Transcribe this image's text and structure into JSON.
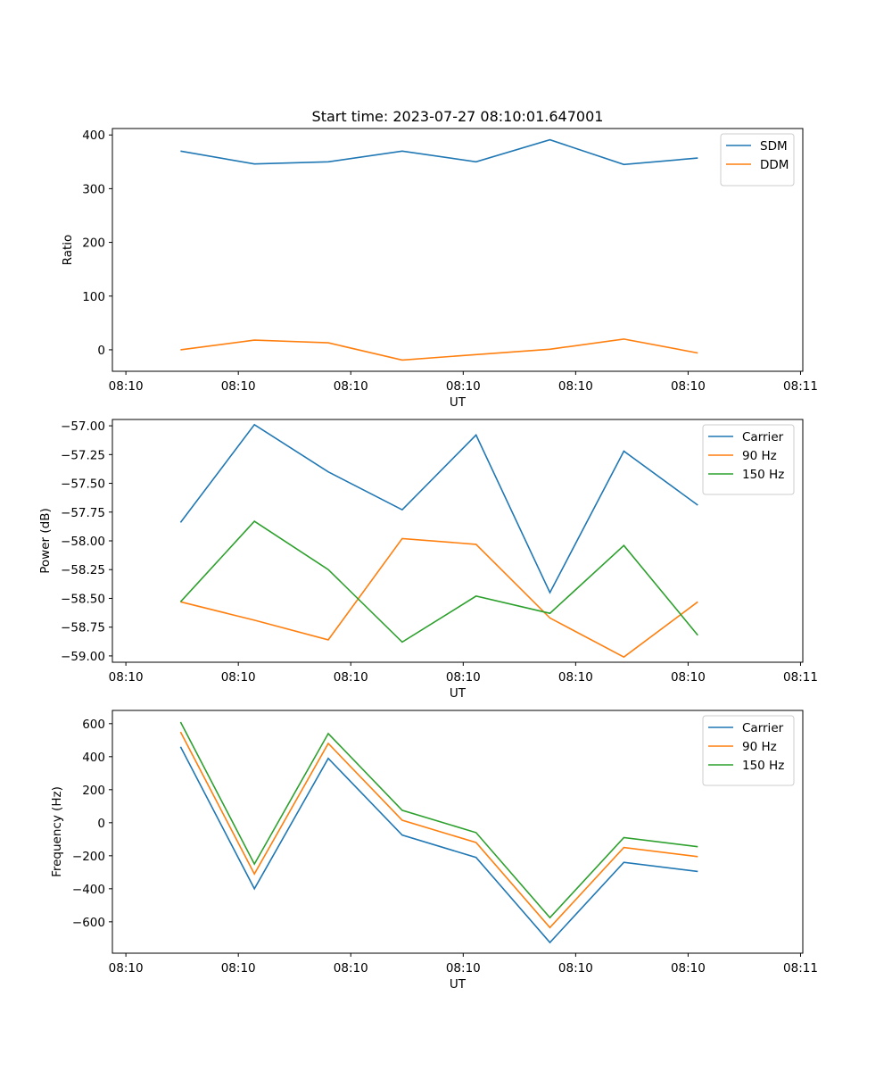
{
  "figure_title": "Start time: 2023-07-27 08:10:01.647001",
  "colors": {
    "blue": "#1f77b4",
    "orange": "#ff7f0e",
    "green": "#2ca02c",
    "axis": "#000000",
    "legend_border": "#cccccc"
  },
  "chart_data": [
    {
      "type": "line",
      "title": "Start time: 2023-07-27 08:10:01.647001",
      "xlabel": "UT",
      "ylabel": "Ratio",
      "x_ticks": [
        0,
        1,
        2,
        3,
        4,
        5,
        6
      ],
      "x_tick_labels": [
        "08:10",
        "08:10",
        "08:10",
        "08:10",
        "08:10",
        "08:10",
        "08:11"
      ],
      "xlim": [
        -0.12,
        6.02
      ],
      "ylim": [
        -40,
        412
      ],
      "y_ticks": [
        0,
        100,
        200,
        300,
        400
      ],
      "y_tick_labels": [
        "0",
        "100",
        "200",
        "300",
        "400"
      ],
      "x": [
        0.486,
        1.143,
        1.8,
        2.457,
        3.114,
        3.771,
        4.429,
        5.086
      ],
      "series": [
        {
          "name": "SDM",
          "color": "#1f77b4",
          "values": [
            370,
            346,
            350,
            370,
            350,
            391,
            345,
            357
          ]
        },
        {
          "name": "DDM",
          "color": "#ff7f0e",
          "values": [
            0,
            18,
            13,
            -19,
            -9,
            1,
            20,
            -6
          ]
        }
      ],
      "legend": "top-right"
    },
    {
      "type": "line",
      "xlabel": "UT",
      "ylabel": "Power (dB)",
      "x_ticks": [
        0,
        1,
        2,
        3,
        4,
        5,
        6
      ],
      "x_tick_labels": [
        "08:10",
        "08:10",
        "08:10",
        "08:10",
        "08:10",
        "08:10",
        "08:11"
      ],
      "xlim": [
        -0.12,
        6.02
      ],
      "ylim": [
        -59.055,
        -56.945
      ],
      "y_ticks": [
        -57.0,
        -57.25,
        -57.5,
        -57.75,
        -58.0,
        -58.25,
        -58.5,
        -58.75,
        -59.0
      ],
      "y_tick_labels": [
        "−57.00",
        "−57.25",
        "−57.50",
        "−57.75",
        "−58.00",
        "−58.25",
        "−58.50",
        "−58.75",
        "−59.00"
      ],
      "x": [
        0.486,
        1.143,
        1.8,
        2.457,
        3.114,
        3.771,
        4.429,
        5.086
      ],
      "series": [
        {
          "name": "Carrier",
          "color": "#1f77b4",
          "values": [
            -57.84,
            -56.99,
            -57.4,
            -57.73,
            -57.08,
            -58.45,
            -57.22,
            -57.69
          ]
        },
        {
          "name": "90 Hz",
          "color": "#ff7f0e",
          "values": [
            -58.53,
            -58.69,
            -58.86,
            -57.98,
            -58.03,
            -58.67,
            -59.01,
            -58.53
          ]
        },
        {
          "name": "150 Hz",
          "color": "#2ca02c",
          "values": [
            -58.53,
            -57.83,
            -58.25,
            -58.88,
            -58.48,
            -58.63,
            -58.04,
            -58.82
          ]
        }
      ],
      "legend": "top-right"
    },
    {
      "type": "line",
      "xlabel": "UT",
      "ylabel": "Frequency (Hz)",
      "x_ticks": [
        0,
        1,
        2,
        3,
        4,
        5,
        6
      ],
      "x_tick_labels": [
        "08:10",
        "08:10",
        "08:10",
        "08:10",
        "08:10",
        "08:10",
        "08:11"
      ],
      "xlim": [
        -0.12,
        6.02
      ],
      "ylim": [
        -790,
        680
      ],
      "y_ticks": [
        600,
        400,
        200,
        0,
        -200,
        -400,
        -600
      ],
      "y_tick_labels": [
        "600",
        "400",
        "200",
        "0",
        "−200",
        "−400",
        "−600"
      ],
      "x": [
        0.486,
        1.143,
        1.8,
        2.457,
        3.114,
        3.771,
        4.429,
        5.086
      ],
      "series": [
        {
          "name": "Carrier",
          "color": "#1f77b4",
          "values": [
            460,
            -400,
            390,
            -75,
            -210,
            -725,
            -240,
            -295
          ]
        },
        {
          "name": "90 Hz",
          "color": "#ff7f0e",
          "values": [
            550,
            -310,
            480,
            15,
            -120,
            -635,
            -150,
            -205
          ]
        },
        {
          "name": "150 Hz",
          "color": "#2ca02c",
          "values": [
            610,
            -250,
            540,
            75,
            -60,
            -575,
            -90,
            -145
          ]
        }
      ],
      "legend": "top-right"
    }
  ]
}
